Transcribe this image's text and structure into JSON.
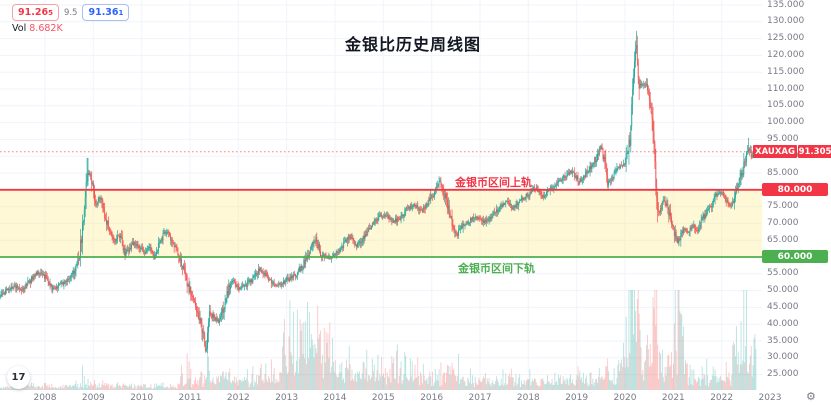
{
  "header": {
    "trade": {
      "sell": "91.26",
      "sell_sup": "5",
      "spread": "9.5",
      "buy": "91.36",
      "buy_sup": "1"
    },
    "vol_label": "Vol",
    "vol_value": "8.682K"
  },
  "title": "金银比历史周线图",
  "axis_tags": {
    "symbol": "XAUXAG",
    "price": "91.305",
    "upper": "80.000",
    "lower": "60.000"
  },
  "watermark_glyph": "17",
  "gear_glyph": "⚙",
  "colors": {
    "up": "#26a69a",
    "down": "#ef5350",
    "vol_up": "rgba(38,166,154,0.32)",
    "vol_down": "rgba(239,83,80,0.32)",
    "upper_band": "#f23645",
    "lower_band": "#4caf50",
    "band_fill": "rgba(252,232,131,0.32)",
    "grid": "#f0f3fa",
    "current_line": "rgba(242,54,69,0.65)"
  },
  "chart_data": {
    "type": "candlestick",
    "symbol": "XAUXAG",
    "timeframe": "weekly",
    "title": "金银比历史周线图",
    "current_price": 91.305,
    "last_volume": "8.682K",
    "upper_band": {
      "value": 80,
      "label": "金银币区间上轨"
    },
    "lower_band": {
      "value": 60,
      "label": "金银币区间下轨"
    },
    "ylim": [
      22.5,
      136.5
    ],
    "y_ticks": [
      25,
      30,
      35,
      40,
      45,
      50,
      55,
      60,
      65,
      70,
      75,
      80,
      85,
      90,
      95,
      100,
      105,
      110,
      115,
      120,
      125,
      130,
      135
    ],
    "y_tick_labels": [
      "25.000",
      "30.000",
      "35.000",
      "40.000",
      "45.000",
      "50.000",
      "55.000",
      "60.000",
      "65.000",
      "70.000",
      "75.000",
      "80.000",
      "85.000",
      "90.000",
      "95.000",
      "100.000",
      "105.000",
      "110.000",
      "115.000",
      "120.000",
      "125.000",
      "130.000",
      "135.000"
    ],
    "x_ticks": [
      2008,
      2009,
      2010,
      2011,
      2012,
      2013,
      2014,
      2015,
      2016,
      2017,
      2018,
      2019,
      2020,
      2021,
      2022,
      2023
    ],
    "series_anchors": [
      [
        2007.05,
        48
      ],
      [
        2007.2,
        50
      ],
      [
        2007.35,
        51.5
      ],
      [
        2007.5,
        50
      ],
      [
        2007.7,
        53
      ],
      [
        2007.85,
        55.5
      ],
      [
        2008.0,
        54
      ],
      [
        2008.15,
        50.5
      ],
      [
        2008.35,
        52
      ],
      [
        2008.55,
        54
      ],
      [
        2008.7,
        59
      ],
      [
        2008.8,
        72
      ],
      [
        2008.88,
        86
      ],
      [
        2008.95,
        83
      ],
      [
        2009.05,
        76
      ],
      [
        2009.15,
        78
      ],
      [
        2009.25,
        72
      ],
      [
        2009.35,
        67
      ],
      [
        2009.45,
        64.5
      ],
      [
        2009.55,
        66.5
      ],
      [
        2009.65,
        61
      ],
      [
        2009.75,
        62.5
      ],
      [
        2009.85,
        64.5
      ],
      [
        2009.95,
        63
      ],
      [
        2010.05,
        61.5
      ],
      [
        2010.15,
        63
      ],
      [
        2010.25,
        60
      ],
      [
        2010.35,
        63.5
      ],
      [
        2010.45,
        66.5
      ],
      [
        2010.55,
        67.5
      ],
      [
        2010.65,
        64
      ],
      [
        2010.75,
        61
      ],
      [
        2010.85,
        57
      ],
      [
        2010.95,
        52
      ],
      [
        2011.05,
        47.5
      ],
      [
        2011.15,
        43.5
      ],
      [
        2011.25,
        38
      ],
      [
        2011.33,
        32.5
      ],
      [
        2011.4,
        43
      ],
      [
        2011.5,
        42
      ],
      [
        2011.6,
        40.5
      ],
      [
        2011.7,
        45
      ],
      [
        2011.8,
        50.5
      ],
      [
        2011.9,
        53.5
      ],
      [
        2012.0,
        51
      ],
      [
        2012.15,
        51.5
      ],
      [
        2012.3,
        53.5
      ],
      [
        2012.45,
        56.5
      ],
      [
        2012.6,
        54
      ],
      [
        2012.75,
        51.5
      ],
      [
        2012.9,
        52
      ],
      [
        2013.05,
        53.5
      ],
      [
        2013.2,
        55
      ],
      [
        2013.35,
        58
      ],
      [
        2013.5,
        62
      ],
      [
        2013.6,
        65.5
      ],
      [
        2013.7,
        61
      ],
      [
        2013.85,
        59.5
      ],
      [
        2014.0,
        61
      ],
      [
        2014.15,
        63
      ],
      [
        2014.3,
        66
      ],
      [
        2014.45,
        63.5
      ],
      [
        2014.6,
        66
      ],
      [
        2014.75,
        69
      ],
      [
        2014.9,
        72
      ],
      [
        2015.05,
        72.5
      ],
      [
        2015.2,
        70.5
      ],
      [
        2015.35,
        71.5
      ],
      [
        2015.5,
        74.5
      ],
      [
        2015.65,
        75.5
      ],
      [
        2015.8,
        73.5
      ],
      [
        2015.95,
        77
      ],
      [
        2016.1,
        80
      ],
      [
        2016.18,
        82.5
      ],
      [
        2016.28,
        78
      ],
      [
        2016.4,
        71
      ],
      [
        2016.52,
        66.5
      ],
      [
        2016.65,
        69.5
      ],
      [
        2016.8,
        71
      ],
      [
        2016.95,
        72
      ],
      [
        2017.1,
        70.5
      ],
      [
        2017.25,
        72
      ],
      [
        2017.4,
        74.5
      ],
      [
        2017.55,
        76.5
      ],
      [
        2017.7,
        74.5
      ],
      [
        2017.85,
        77
      ],
      [
        2018.0,
        78.5
      ],
      [
        2018.15,
        80.5
      ],
      [
        2018.3,
        78
      ],
      [
        2018.45,
        80
      ],
      [
        2018.6,
        82
      ],
      [
        2018.75,
        84
      ],
      [
        2018.9,
        85.5
      ],
      [
        2019.05,
        82.5
      ],
      [
        2019.2,
        85
      ],
      [
        2019.35,
        88
      ],
      [
        2019.5,
        92.5
      ],
      [
        2019.57,
        89
      ],
      [
        2019.65,
        81.5
      ],
      [
        2019.78,
        84.5
      ],
      [
        2019.88,
        86.5
      ],
      [
        2020.0,
        88
      ],
      [
        2020.1,
        95
      ],
      [
        2020.18,
        113
      ],
      [
        2020.23,
        125
      ],
      [
        2020.28,
        112
      ],
      [
        2020.36,
        111
      ],
      [
        2020.44,
        112
      ],
      [
        2020.52,
        107
      ],
      [
        2020.58,
        97
      ],
      [
        2020.64,
        81
      ],
      [
        2020.7,
        72
      ],
      [
        2020.78,
        77
      ],
      [
        2020.86,
        75.5
      ],
      [
        2020.94,
        71.5
      ],
      [
        2021.02,
        67
      ],
      [
        2021.1,
        64.5
      ],
      [
        2021.2,
        68
      ],
      [
        2021.3,
        67.5
      ],
      [
        2021.4,
        69.5
      ],
      [
        2021.5,
        67.5
      ],
      [
        2021.6,
        71.5
      ],
      [
        2021.7,
        73.5
      ],
      [
        2021.8,
        75.5
      ],
      [
        2021.9,
        78.5
      ],
      [
        2022.0,
        79
      ],
      [
        2022.08,
        77.5
      ],
      [
        2022.17,
        75.5
      ],
      [
        2022.25,
        77
      ],
      [
        2022.33,
        80.5
      ],
      [
        2022.42,
        85
      ],
      [
        2022.5,
        90
      ],
      [
        2022.56,
        93
      ],
      [
        2022.62,
        89.5
      ],
      [
        2022.68,
        90.5
      ],
      [
        2022.72,
        91.305
      ]
    ],
    "wick_events": [
      [
        2008.88,
        89.5,
        "high"
      ],
      [
        2011.33,
        31.5,
        "low"
      ],
      [
        2016.18,
        83.5,
        "high"
      ],
      [
        2019.5,
        93.5,
        "high"
      ],
      [
        2020.23,
        127.3,
        "high"
      ],
      [
        2022.56,
        95.5,
        "high"
      ]
    ],
    "volume": {
      "eras": [
        [
          2007.0,
          2010.8,
          2.5
        ],
        [
          2010.8,
          2012.4,
          6
        ],
        [
          2012.4,
          2012.9,
          10
        ],
        [
          2012.9,
          2013.95,
          26
        ],
        [
          2013.95,
          2015.7,
          13
        ],
        [
          2015.7,
          2016.6,
          9
        ],
        [
          2016.6,
          2019.85,
          6.5
        ],
        [
          2019.85,
          2020.75,
          20
        ],
        [
          2020.75,
          2021.0,
          12
        ],
        [
          2021.0,
          2021.3,
          30
        ],
        [
          2021.3,
          2022.2,
          9
        ],
        [
          2022.2,
          2022.73,
          22
        ]
      ],
      "spikes": [
        [
          2013.3,
          55
        ],
        [
          2013.5,
          48
        ],
        [
          2020.2,
          44
        ],
        [
          2021.11,
          100
        ],
        [
          2021.14,
          70
        ],
        [
          2022.6,
          38
        ],
        [
          2022.68,
          50
        ]
      ]
    }
  }
}
